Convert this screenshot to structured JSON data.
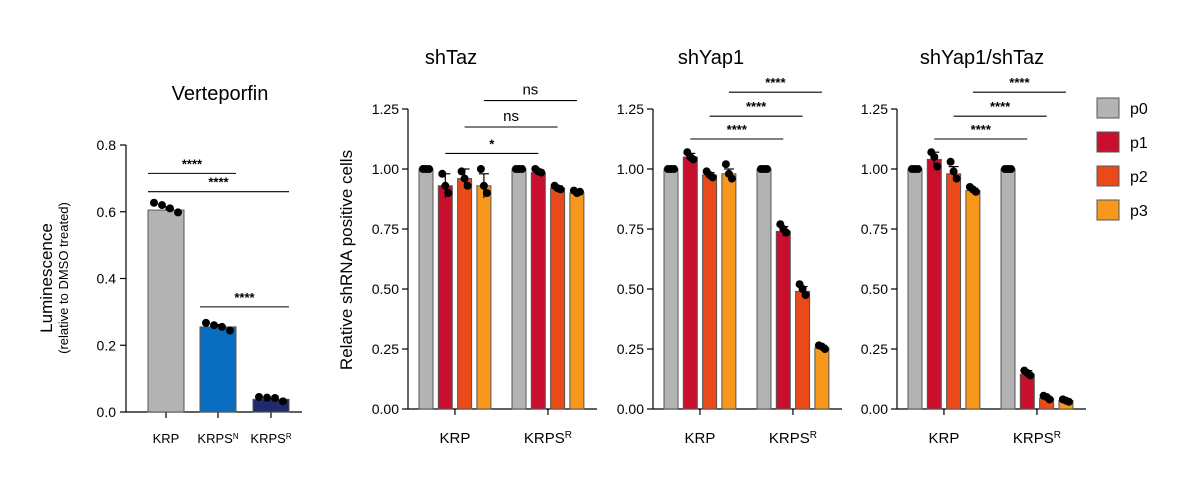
{
  "colors": {
    "p0": "#b3b3b3",
    "p1": "#c8102e",
    "p2": "#ea4a1a",
    "p3": "#f7981d",
    "KRP": "#b3b3b3",
    "KRPS_N": "#0a6ec0",
    "KRPS_R": "#1f2a6b"
  },
  "legend": [
    {
      "key": "p0",
      "label": "p0"
    },
    {
      "key": "p1",
      "label": "p1"
    },
    {
      "key": "p2",
      "label": "p2"
    },
    {
      "key": "p3",
      "label": "p3"
    }
  ],
  "chart_data": [
    {
      "type": "bar",
      "title": "Verteporfin",
      "ylabel": "Luminescence",
      "ylabel_sub": "(relative to DMSO treated)",
      "ylim": [
        0,
        0.8
      ],
      "yticks": [
        "0.0",
        "0.2",
        "0.4",
        "0.6",
        "0.8"
      ],
      "ytick_values": [
        0,
        0.2,
        0.4,
        0.6,
        0.8
      ],
      "categories": [
        {
          "base": "KRP",
          "sup": ""
        },
        {
          "base": "KRPS",
          "sup": "N"
        },
        {
          "base": "KRPS",
          "sup": "R"
        }
      ],
      "bar_colors": [
        "KRP",
        "KRPS_N",
        "KRPS_R"
      ],
      "values": [
        0.605,
        0.255,
        0.038
      ],
      "errors": [
        0.01,
        0.007,
        0.003
      ],
      "points": [
        [
          0.627,
          0.62,
          0.61,
          0.598
        ],
        [
          0.267,
          0.26,
          0.255,
          0.244
        ],
        [
          0.045,
          0.043,
          0.042,
          0.032
        ]
      ],
      "significance": [
        {
          "from": 0,
          "to": 1,
          "label": "****",
          "y": 0.715
        },
        {
          "from": 0,
          "to": 2,
          "label": "****",
          "y": 0.66
        },
        {
          "from": 1,
          "to": 2,
          "label": "****",
          "y": 0.315
        }
      ]
    },
    {
      "type": "bar",
      "title": "shTaz",
      "ylabel": "Relative shRNA positive cells",
      "ylim": [
        0,
        1.25
      ],
      "yticks": [
        "0.00",
        "0.25",
        "0.50",
        "0.75",
        "1.00",
        "1.25"
      ],
      "ytick_values": [
        0,
        0.25,
        0.5,
        0.75,
        1.0,
        1.25
      ],
      "groups": [
        {
          "base": "KRP",
          "sup": ""
        },
        {
          "base": "KRPS",
          "sup": "R"
        }
      ],
      "series": [
        {
          "name": "p0",
          "values": [
            1.0,
            1.0
          ],
          "errors": [
            0.005,
            0.005
          ],
          "points": [
            [
              1.0,
              1.0,
              1.0
            ],
            [
              1.0,
              1.0,
              1.0
            ]
          ]
        },
        {
          "name": "p1",
          "values": [
            0.93,
            0.985
          ],
          "errors": [
            0.05,
            0.01
          ],
          "points": [
            [
              0.98,
              0.93,
              0.9
            ],
            [
              1.0,
              0.99,
              0.985
            ]
          ]
        },
        {
          "name": "p2",
          "values": [
            0.96,
            0.92
          ],
          "errors": [
            0.04,
            0.01
          ],
          "points": [
            [
              0.99,
              0.96,
              0.93
            ],
            [
              0.93,
              0.92,
              0.915
            ]
          ]
        },
        {
          "name": "p3",
          "values": [
            0.93,
            0.9
          ],
          "errors": [
            0.05,
            0.005
          ],
          "points": [
            [
              1.0,
              0.93,
              0.9
            ],
            [
              0.91,
              0.9,
              0.905
            ]
          ]
        }
      ],
      "significance": [
        {
          "from": [
            0,
            1
          ],
          "to": [
            1,
            1
          ],
          "label": "*",
          "y": 1.065
        },
        {
          "from": [
            0,
            2
          ],
          "to": [
            1,
            2
          ],
          "label": "ns",
          "y": 1.175
        },
        {
          "from": [
            0,
            3
          ],
          "to": [
            1,
            3
          ],
          "label": "ns",
          "y": 1.285
        }
      ]
    },
    {
      "type": "bar",
      "title": "shYap1",
      "ylim": [
        0,
        1.25
      ],
      "yticks": [
        "0.00",
        "0.25",
        "0.50",
        "0.75",
        "1.00",
        "1.25"
      ],
      "ytick_values": [
        0,
        0.25,
        0.5,
        0.75,
        1.0,
        1.25
      ],
      "groups": [
        {
          "base": "KRP",
          "sup": ""
        },
        {
          "base": "KRPS",
          "sup": "R"
        }
      ],
      "series": [
        {
          "name": "p0",
          "values": [
            1.0,
            1.0
          ],
          "errors": [
            0.005,
            0.005
          ],
          "points": [
            [
              1.0,
              1.0,
              1.0
            ],
            [
              1.0,
              1.0,
              1.0
            ]
          ]
        },
        {
          "name": "p1",
          "values": [
            1.05,
            0.74
          ],
          "errors": [
            0.015,
            0.02
          ],
          "points": [
            [
              1.07,
              1.05,
              1.04
            ],
            [
              0.77,
              0.75,
              0.735
            ]
          ]
        },
        {
          "name": "p2",
          "values": [
            0.975,
            0.49
          ],
          "errors": [
            0.01,
            0.02
          ],
          "points": [
            [
              0.99,
              0.975,
              0.965
            ],
            [
              0.52,
              0.5,
              0.475
            ]
          ]
        },
        {
          "name": "p3",
          "values": [
            0.98,
            0.255
          ],
          "errors": [
            0.02,
            0.01
          ],
          "points": [
            [
              1.02,
              0.98,
              0.96
            ],
            [
              0.265,
              0.26,
              0.25
            ]
          ]
        }
      ],
      "significance": [
        {
          "from": [
            0,
            1
          ],
          "to": [
            1,
            1
          ],
          "label": "****",
          "y": 1.125
        },
        {
          "from": [
            0,
            2
          ],
          "to": [
            1,
            2
          ],
          "label": "****",
          "y": 1.22
        },
        {
          "from": [
            0,
            3
          ],
          "to": [
            1,
            3
          ],
          "label": "****",
          "y": 1.32
        }
      ]
    },
    {
      "type": "bar",
      "title": "shYap1/shTaz",
      "ylim": [
        0,
        1.25
      ],
      "yticks": [
        "0.00",
        "0.25",
        "0.50",
        "0.75",
        "1.00",
        "1.25"
      ],
      "ytick_values": [
        0,
        0.25,
        0.5,
        0.75,
        1.0,
        1.25
      ],
      "groups": [
        {
          "base": "KRP",
          "sup": ""
        },
        {
          "base": "KRPS",
          "sup": "R"
        }
      ],
      "series": [
        {
          "name": "p0",
          "values": [
            1.0,
            1.0
          ],
          "errors": [
            0.005,
            0.005
          ],
          "points": [
            [
              1.0,
              1.0,
              1.0
            ],
            [
              1.0,
              1.0,
              1.0
            ]
          ]
        },
        {
          "name": "p1",
          "values": [
            1.04,
            0.145
          ],
          "errors": [
            0.03,
            0.015
          ],
          "points": [
            [
              1.07,
              1.05,
              1.01
            ],
            [
              0.16,
              0.15,
              0.14
            ]
          ]
        },
        {
          "name": "p2",
          "values": [
            0.98,
            0.045
          ],
          "errors": [
            0.03,
            0.008
          ],
          "points": [
            [
              1.03,
              0.99,
              0.96
            ],
            [
              0.055,
              0.05,
              0.04
            ]
          ]
        },
        {
          "name": "p3",
          "values": [
            0.91,
            0.035
          ],
          "errors": [
            0.01,
            0.005
          ],
          "points": [
            [
              0.925,
              0.915,
              0.905
            ],
            [
              0.04,
              0.035,
              0.03
            ]
          ]
        }
      ],
      "significance": [
        {
          "from": [
            0,
            1
          ],
          "to": [
            1,
            1
          ],
          "label": "****",
          "y": 1.125
        },
        {
          "from": [
            0,
            2
          ],
          "to": [
            1,
            2
          ],
          "label": "****",
          "y": 1.22
        },
        {
          "from": [
            0,
            3
          ],
          "to": [
            1,
            3
          ],
          "label": "****",
          "y": 1.32
        }
      ]
    }
  ]
}
